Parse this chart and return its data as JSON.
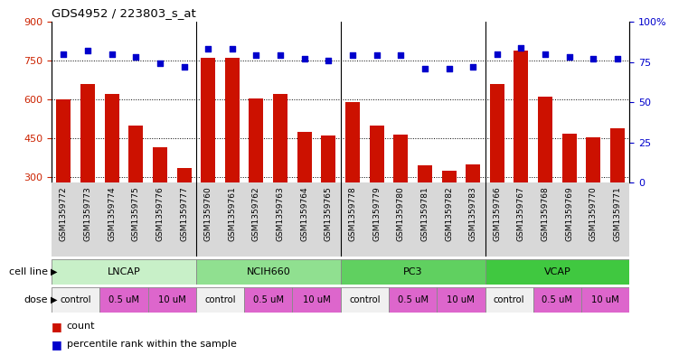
{
  "title": "GDS4952 / 223803_s_at",
  "samples": [
    "GSM1359772",
    "GSM1359773",
    "GSM1359774",
    "GSM1359775",
    "GSM1359776",
    "GSM1359777",
    "GSM1359760",
    "GSM1359761",
    "GSM1359762",
    "GSM1359763",
    "GSM1359764",
    "GSM1359765",
    "GSM1359778",
    "GSM1359779",
    "GSM1359780",
    "GSM1359781",
    "GSM1359782",
    "GSM1359783",
    "GSM1359766",
    "GSM1359767",
    "GSM1359768",
    "GSM1359769",
    "GSM1359770",
    "GSM1359771"
  ],
  "counts": [
    600,
    660,
    620,
    500,
    415,
    335,
    760,
    760,
    605,
    620,
    475,
    460,
    590,
    500,
    465,
    345,
    325,
    350,
    660,
    790,
    610,
    470,
    455,
    490
  ],
  "percentile": [
    80,
    82,
    80,
    78,
    74,
    72,
    83,
    83,
    79,
    79,
    77,
    76,
    79,
    79,
    79,
    71,
    71,
    72,
    80,
    84,
    80,
    78,
    77,
    77
  ],
  "cell_lines": [
    {
      "label": "LNCAP",
      "start": 0,
      "end": 6,
      "color": "#c8f0c8"
    },
    {
      "label": "NCIH660",
      "start": 6,
      "end": 12,
      "color": "#90e090"
    },
    {
      "label": "PC3",
      "start": 12,
      "end": 18,
      "color": "#60d060"
    },
    {
      "label": "VCAP",
      "start": 18,
      "end": 24,
      "color": "#40c840"
    }
  ],
  "dose_blocks": [
    {
      "label": "control",
      "start": 0,
      "end": 2
    },
    {
      "label": "0.5 uM",
      "start": 2,
      "end": 4
    },
    {
      "label": "10 uM",
      "start": 4,
      "end": 6
    },
    {
      "label": "control",
      "start": 6,
      "end": 8
    },
    {
      "label": "0.5 uM",
      "start": 8,
      "end": 10
    },
    {
      "label": "10 uM",
      "start": 10,
      "end": 12
    },
    {
      "label": "control",
      "start": 12,
      "end": 14
    },
    {
      "label": "0.5 uM",
      "start": 14,
      "end": 16
    },
    {
      "label": "10 uM",
      "start": 16,
      "end": 18
    },
    {
      "label": "control",
      "start": 18,
      "end": 20
    },
    {
      "label": "0.5 uM",
      "start": 20,
      "end": 22
    },
    {
      "label": "10 uM",
      "start": 22,
      "end": 24
    }
  ],
  "bar_color": "#cc1100",
  "dot_color": "#0000cc",
  "ylim_left": [
    280,
    900
  ],
  "yticks_left": [
    300,
    450,
    600,
    750,
    900
  ],
  "ylim_right": [
    0,
    100
  ],
  "yticks_right": [
    0,
    25,
    50,
    75,
    100
  ],
  "grid_values": [
    300,
    450,
    600,
    750
  ],
  "background_color": "#ffffff"
}
